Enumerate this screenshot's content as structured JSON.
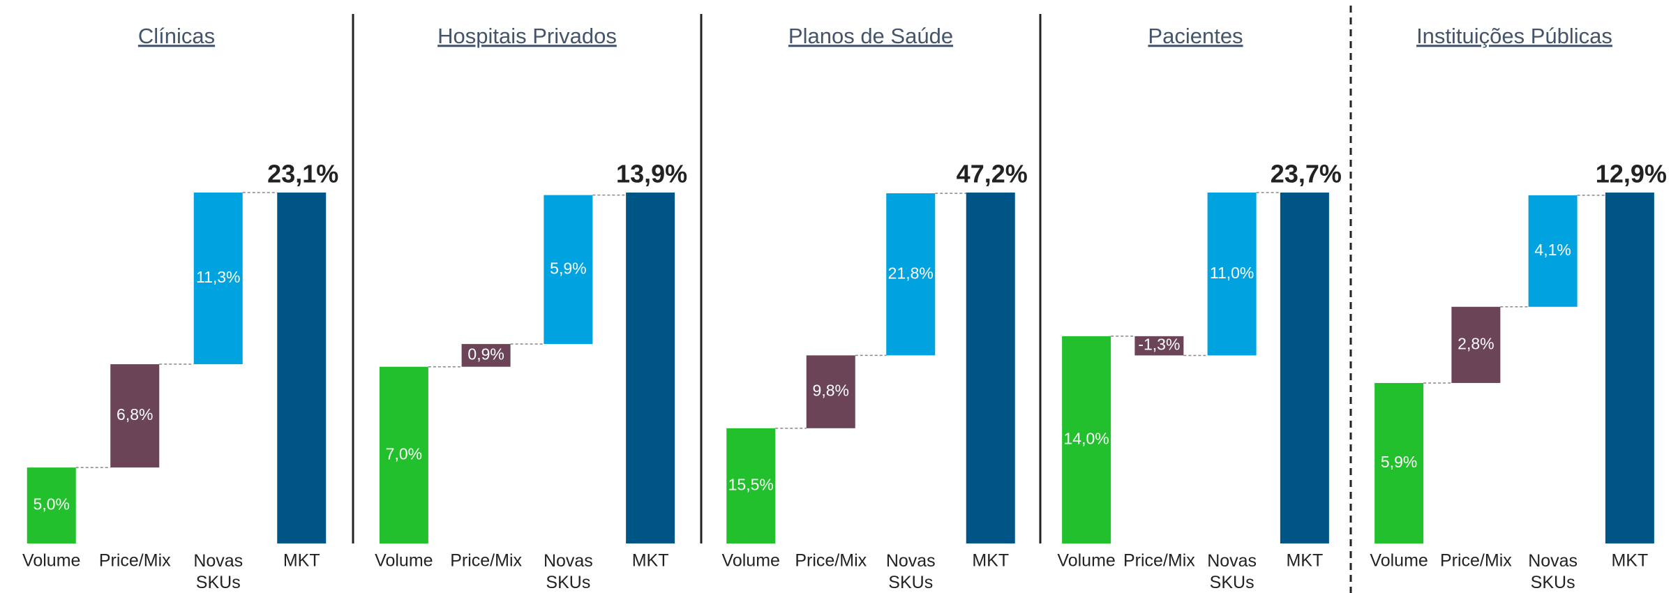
{
  "chart_data": [
    {
      "type": "waterfall",
      "title": "Clínicas",
      "categories": [
        "Volume",
        "Price/Mix",
        "Novas SKUs",
        "MKT"
      ],
      "values": [
        5.0,
        6.8,
        11.3,
        23.1
      ],
      "value_labels": [
        "5,0%",
        "6,8%",
        "11,3%",
        "23,1%"
      ],
      "colors": [
        "#22c02c",
        "#6b4457",
        "#00a3e0",
        "#005587"
      ]
    },
    {
      "type": "waterfall",
      "title": "Hospitais Privados",
      "categories": [
        "Volume",
        "Price/Mix",
        "Novas SKUs",
        "MKT"
      ],
      "values": [
        7.0,
        0.9,
        5.9,
        13.9
      ],
      "value_labels": [
        "7,0%",
        "0,9%",
        "5,9%",
        "13,9%"
      ],
      "colors": [
        "#22c02c",
        "#6b4457",
        "#00a3e0",
        "#005587"
      ]
    },
    {
      "type": "waterfall",
      "title": "Planos de Saúde",
      "categories": [
        "Volume",
        "Price/Mix",
        "Novas SKUs",
        "MKT"
      ],
      "values": [
        15.5,
        9.8,
        21.8,
        47.2
      ],
      "value_labels": [
        "15,5%",
        "9,8%",
        "21,8%",
        "47,2%"
      ],
      "colors": [
        "#22c02c",
        "#6b4457",
        "#00a3e0",
        "#005587"
      ]
    },
    {
      "type": "waterfall",
      "title": "Pacientes",
      "categories": [
        "Volume",
        "Price/Mix",
        "Novas SKUs",
        "MKT"
      ],
      "values": [
        14.0,
        -1.3,
        11.0,
        23.7
      ],
      "value_labels": [
        "14,0%",
        "-1,3%",
        "11,0%",
        "23,7%"
      ],
      "colors": [
        "#22c02c",
        "#6b4457",
        "#00a3e0",
        "#005587"
      ]
    },
    {
      "type": "waterfall",
      "title": "Instituições Públicas",
      "categories": [
        "Volume",
        "Price/Mix",
        "Novas SKUs",
        "MKT"
      ],
      "values": [
        5.9,
        2.8,
        4.1,
        12.9
      ],
      "value_labels": [
        "5,9%",
        "2,8%",
        "4,1%",
        "12,9%"
      ],
      "colors": [
        "#22c02c",
        "#6b4457",
        "#00a3e0",
        "#005587"
      ]
    }
  ]
}
